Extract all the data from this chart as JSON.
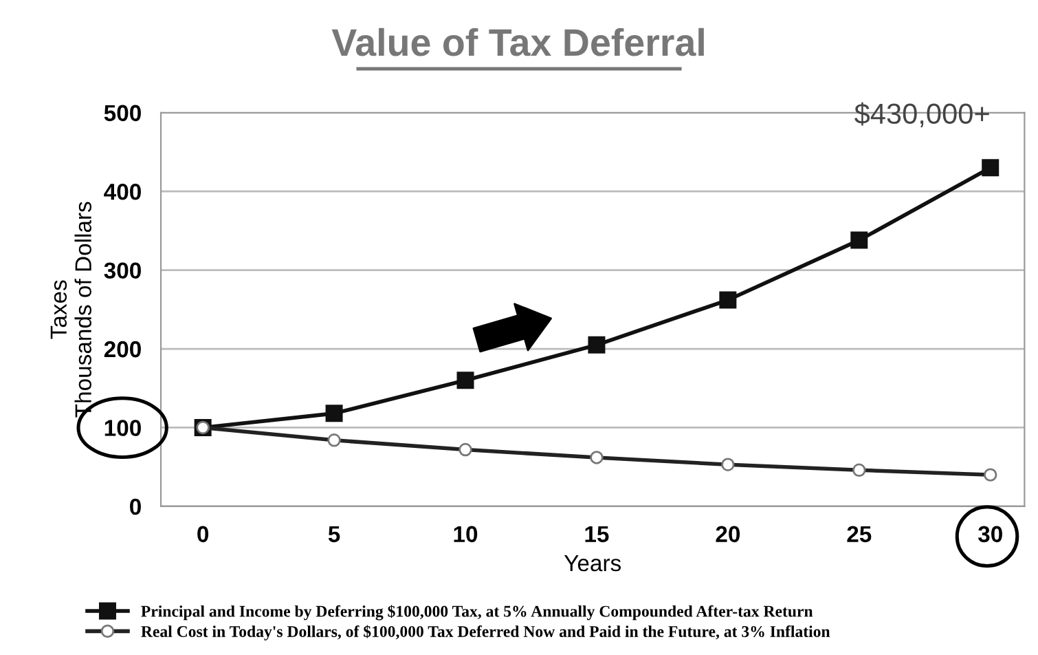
{
  "chart_data": {
    "type": "line",
    "title": "Value of Tax Deferral",
    "xlabel": "Years",
    "ylabel": "Taxes\nThousands of Dollars",
    "x": [
      0,
      5,
      10,
      15,
      20,
      25,
      30
    ],
    "series": [
      {
        "name": "Principal and Income by Deferring $100,000 Tax, at 5% Annually Compounded After-tax Return",
        "color": "#111111",
        "marker": "square",
        "values": [
          100,
          118,
          160,
          205,
          262,
          338,
          430
        ]
      },
      {
        "name": "Real Cost in Today's Dollars, of $100,000 Tax Deferred Now and Paid in the Future, at 3% Inflation",
        "color": "#222222",
        "marker": "circle",
        "values": [
          100,
          84,
          72,
          62,
          53,
          46,
          40
        ]
      }
    ],
    "xlim": [
      -1.6,
      31.3
    ],
    "xticks": [
      0,
      5,
      10,
      15,
      20,
      25,
      30
    ],
    "ylim": [
      0,
      500
    ],
    "yticks": [
      0,
      100,
      200,
      300,
      400,
      500
    ],
    "grid": "y",
    "legend": "bottom",
    "line_style": "solid",
    "annotations": [
      {
        "text": "$430,000+",
        "x": 30,
        "y": 430
      }
    ]
  }
}
